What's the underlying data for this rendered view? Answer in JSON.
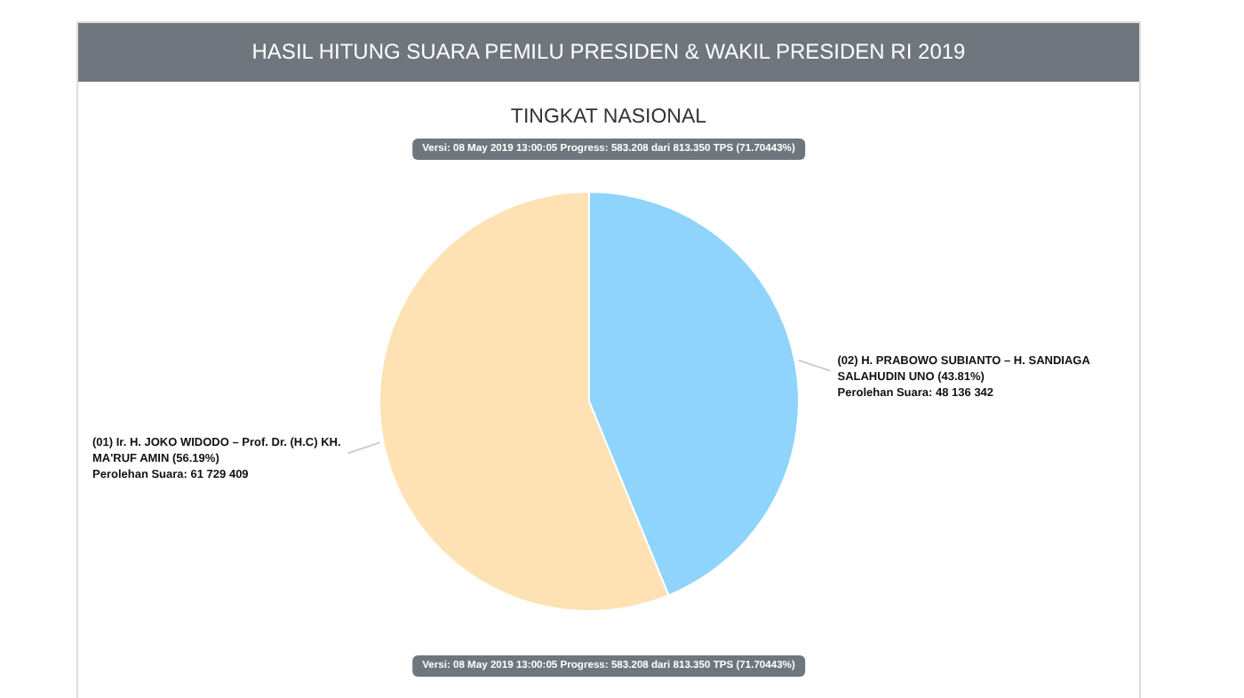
{
  "chart_data": {
    "type": "pie",
    "title": "HASIL HITUNG SUARA PEMILU PRESIDEN & WAKIL PRESIDEN RI 2019",
    "subtitle": "TINGKAT NASIONAL",
    "categories": [
      "(02) H. PRABOWO SUBIANTO – H. SANDIAGA SALAHUDIN UNO (43.81%)",
      "(01) Ir. H. JOKO WIDODO – Prof. Dr. (H.C) KH. MA'RUF AMIN (56.19%)"
    ],
    "values": [
      48136342,
      61729409
    ],
    "value_labels": [
      "Perolehan Suara: 48 136 342",
      "Perolehan Suara: 61 729 409"
    ],
    "colors": [
      "#8fd4fc",
      "#fee2b4"
    ],
    "annotations": [
      "Versi: 08 May 2019 13:00:05 Progress: 583.208 dari 813.350 TPS (71.70443%)",
      "Versi: 08 May 2019 13:00:05 Progress: 583.208 dari 813.350 TPS (71.70443%)"
    ]
  }
}
